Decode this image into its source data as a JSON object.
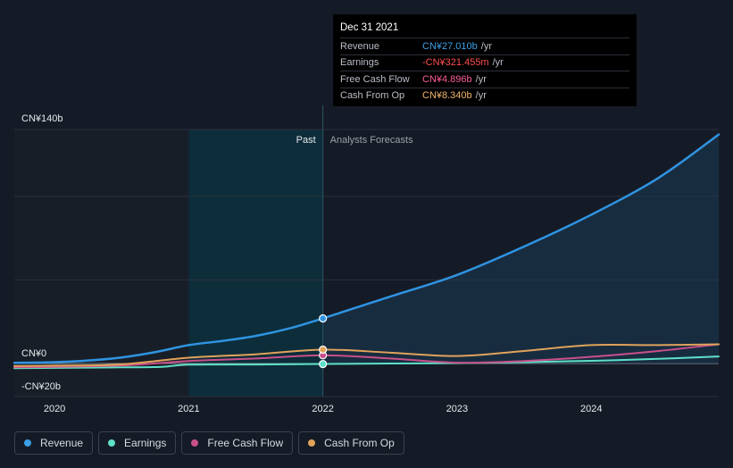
{
  "tooltip": {
    "date": "Dec 31 2021",
    "rows": [
      {
        "label": "Revenue",
        "value": "CN¥27.010b",
        "unit": "/yr",
        "color": "#3c9fe6"
      },
      {
        "label": "Earnings",
        "value": "-CN¥321.455m",
        "unit": "/yr",
        "color": "#ff4d4d"
      },
      {
        "label": "Free Cash Flow",
        "value": "CN¥4.896b",
        "unit": "/yr",
        "color": "#ff5c9a"
      },
      {
        "label": "Cash From Op",
        "value": "CN¥8.340b",
        "unit": "/yr",
        "color": "#f2b36b"
      }
    ]
  },
  "legend": [
    {
      "label": "Revenue",
      "color": "#3c9fe6"
    },
    {
      "label": "Earnings",
      "color": "#5fe0c8"
    },
    {
      "label": "Free Cash Flow",
      "color": "#c8508a"
    },
    {
      "label": "Cash From Op",
      "color": "#e0a35a"
    }
  ],
  "chart_data": {
    "type": "line",
    "y_axis_labels": [
      "CN¥140b",
      "CN¥0",
      "-CN¥20b"
    ],
    "x_tick_labels": [
      "2020",
      "2021",
      "2022",
      "2023",
      "2024"
    ],
    "region_labels": {
      "past": "Past",
      "forecast": "Analysts Forecasts"
    },
    "ylim": [
      -20,
      140
    ],
    "xlim": [
      2019.7,
      2024.95
    ],
    "divider_x": 2022.0,
    "highlight_range": [
      2021.0,
      2022.0
    ],
    "series": [
      {
        "name": "Revenue",
        "color": "#2f94e2",
        "x": [
          2019.7,
          2020.0,
          2020.25,
          2020.5,
          2020.75,
          2021.0,
          2021.25,
          2021.5,
          2021.75,
          2022.0,
          2022.5,
          2023.0,
          2023.5,
          2024.0,
          2024.5,
          2024.95
        ],
        "y": [
          0.4,
          0.8,
          1.8,
          3.6,
          6.8,
          11.0,
          13.5,
          16.5,
          21.0,
          27.0,
          40.0,
          53.0,
          70.0,
          89.0,
          111.0,
          137.0
        ]
      },
      {
        "name": "Earnings",
        "color": "#5fe0c8",
        "x": [
          2019.7,
          2020.0,
          2020.5,
          2020.8,
          2021.0,
          2021.5,
          2022.0,
          2022.5,
          2023.0,
          2023.5,
          2024.0,
          2024.5,
          2024.95
        ],
        "y": [
          -2.8,
          -2.6,
          -2.3,
          -2.0,
          -0.7,
          -0.6,
          -0.3,
          0.0,
          0.2,
          0.8,
          1.6,
          2.8,
          4.2
        ]
      },
      {
        "name": "Free Cash Flow",
        "color": "#c8508a",
        "x": [
          2019.7,
          2020.0,
          2020.5,
          2021.0,
          2021.5,
          2022.0,
          2022.5,
          2023.0,
          2023.5,
          2024.0,
          2024.5,
          2024.95
        ],
        "y": [
          -2.2,
          -2.0,
          -1.2,
          1.5,
          3.0,
          4.9,
          3.0,
          0.5,
          1.5,
          4.0,
          7.5,
          11.5
        ]
      },
      {
        "name": "Cash From Op",
        "color": "#e0a35a",
        "x": [
          2019.7,
          2020.0,
          2020.5,
          2021.0,
          2021.5,
          2022.0,
          2022.5,
          2023.0,
          2023.5,
          2024.0,
          2024.5,
          2024.95
        ],
        "y": [
          -1.5,
          -1.3,
          -0.5,
          3.5,
          5.5,
          8.3,
          6.5,
          4.5,
          7.5,
          11.0,
          11.0,
          11.5
        ]
      }
    ],
    "markers_at": 2022.0
  }
}
